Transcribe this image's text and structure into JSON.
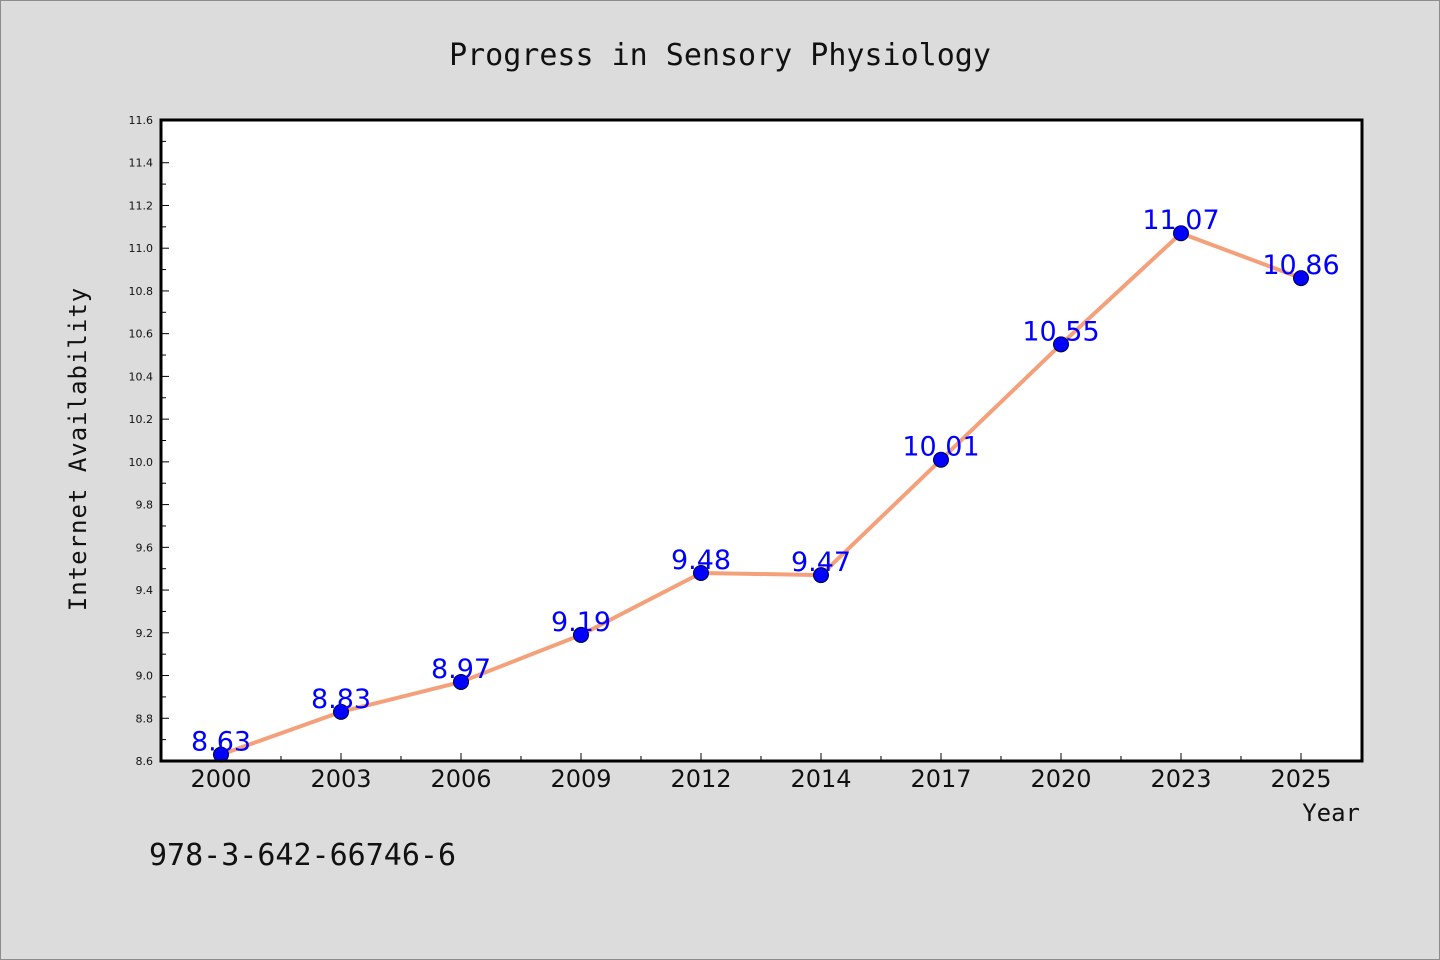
{
  "chart_data": {
    "type": "line",
    "title": "Progress in Sensory Physiology",
    "xlabel": "Year",
    "ylabel": "Internet Availability",
    "categories": [
      "2000",
      "2003",
      "2006",
      "2009",
      "2012",
      "2014",
      "2017",
      "2020",
      "2023",
      "2025"
    ],
    "series": [
      {
        "values": [
          8.63,
          8.83,
          8.97,
          9.19,
          9.48,
          9.47,
          10.01,
          10.55,
          11.07,
          10.86
        ],
        "data_labels": [
          "8.63",
          "8.83",
          "8.97",
          "9.19",
          "9.48",
          "9.47",
          "10.01",
          "10.55",
          "11.07",
          "10.86"
        ],
        "line_color": "#f4a07a",
        "marker_color": "#0000ff"
      }
    ],
    "ylim": [
      8.6,
      11.6
    ],
    "yticks": [
      "8.6",
      "8.8",
      "9.0",
      "9.2",
      "9.4",
      "9.6",
      "9.8",
      "10.0",
      "10.2",
      "10.4",
      "10.6",
      "10.8",
      "11.0",
      "11.2",
      "11.4",
      "11.6"
    ],
    "grid": false,
    "legend": "none",
    "background_color": "#dcdcdc",
    "plot_background_color": "#ffffff",
    "label_color": "#0000ff"
  },
  "footer": {
    "isbn": "978-3-642-66746-6"
  }
}
